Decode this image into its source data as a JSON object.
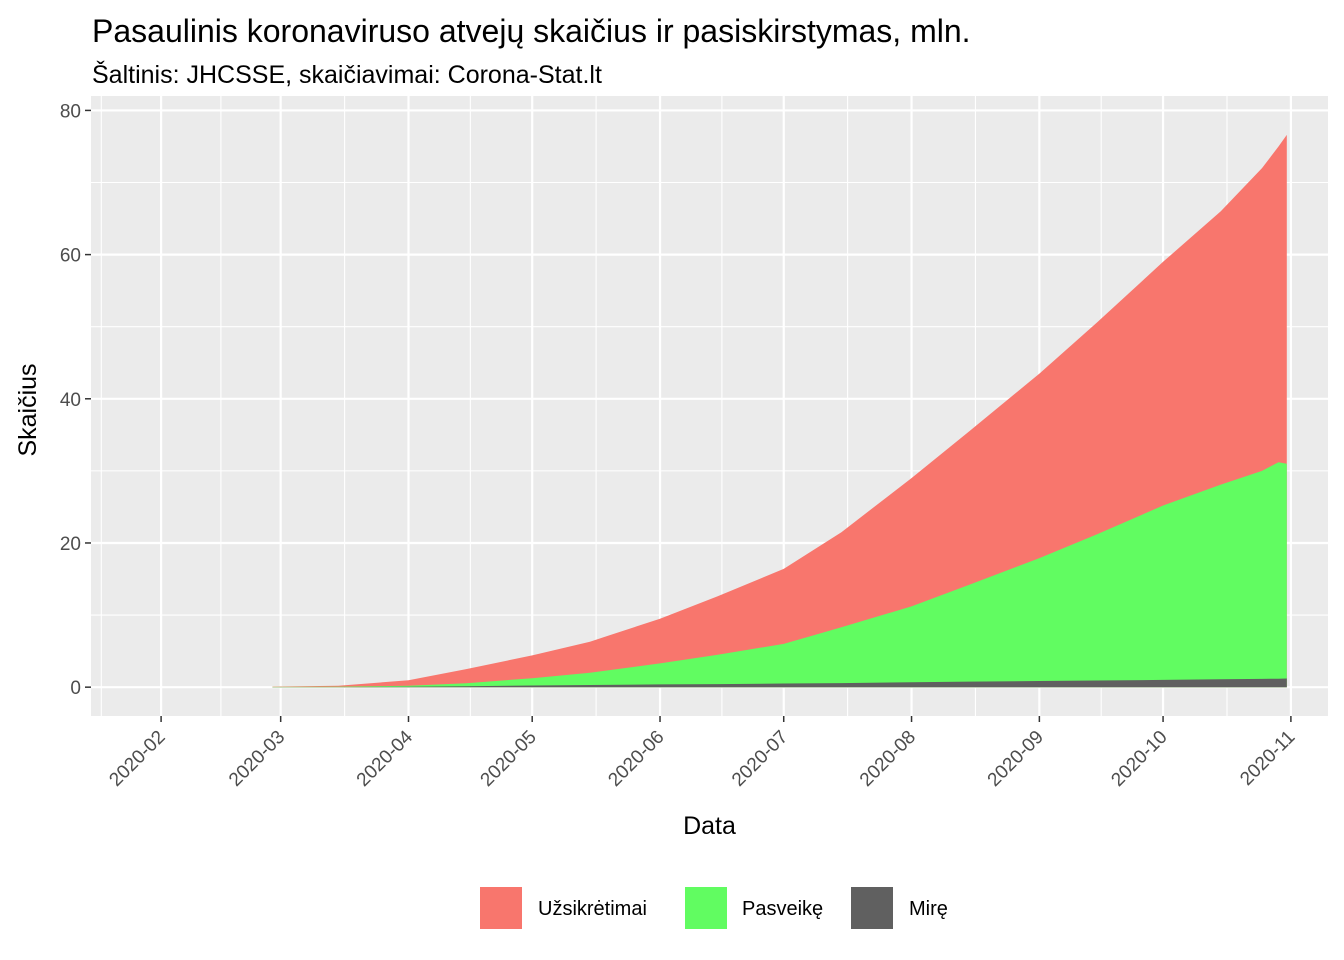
{
  "chart_data": {
    "type": "area",
    "stacked": false,
    "title": "Pasaulinis koronaviruso atvejų skaičius ir pasiskirstymas, mln.",
    "subtitle": "Šaltinis: JHCSSE, skaičiavimai: Corona-Stat.lt",
    "xlabel": "Data",
    "ylabel": "Skaičius",
    "x_type": "date",
    "xlim": [
      "2020-01-15",
      "2020-11-10"
    ],
    "ylim": [
      -4,
      82
    ],
    "y_ticks": [
      0,
      20,
      40,
      60,
      80
    ],
    "x_ticks": [
      "2020-02-01",
      "2020-03-01",
      "2020-04-01",
      "2020-05-01",
      "2020-06-01",
      "2020-07-01",
      "2020-08-01",
      "2020-09-01",
      "2020-10-01",
      "2020-11-01"
    ],
    "x_tick_labels": [
      "2020-02",
      "2020-03",
      "2020-04",
      "2020-05",
      "2020-06",
      "2020-07",
      "2020-08",
      "2020-09",
      "2020-10",
      "2020-11"
    ],
    "grid": true,
    "legend_position": "bottom",
    "x": [
      "2020-02-28",
      "2020-03-15",
      "2020-04-01",
      "2020-04-15",
      "2020-05-01",
      "2020-05-15",
      "2020-06-01",
      "2020-06-15",
      "2020-07-01",
      "2020-07-15",
      "2020-08-01",
      "2020-08-15",
      "2020-09-01",
      "2020-09-15",
      "2020-10-01",
      "2020-10-15",
      "2020-10-25",
      "2020-10-29",
      "2020-10-31"
    ],
    "series": [
      {
        "name": "Užsikrėtimai",
        "color": "#F8766D",
        "values": [
          0.08,
          0.2,
          0.95,
          2.5,
          4.4,
          6.3,
          9.5,
          12.6,
          16.4,
          21.5,
          29.0,
          35.5,
          43.5,
          50.6,
          59.0,
          66.0,
          72.0,
          75.0,
          76.6
        ]
      },
      {
        "name": "Pasveikę",
        "color": "#61FC61",
        "values": [
          0.04,
          0.07,
          0.2,
          0.55,
          1.25,
          2.0,
          3.3,
          4.5,
          6.0,
          8.3,
          11.2,
          14.2,
          17.9,
          21.2,
          25.2,
          28.1,
          30.0,
          31.2,
          31.0
        ]
      },
      {
        "name": "Mirę",
        "color": "#606060",
        "values": [
          0.003,
          0.006,
          0.05,
          0.13,
          0.23,
          0.3,
          0.38,
          0.43,
          0.51,
          0.57,
          0.68,
          0.77,
          0.86,
          0.93,
          1.01,
          1.1,
          1.15,
          1.18,
          1.2
        ]
      }
    ]
  }
}
